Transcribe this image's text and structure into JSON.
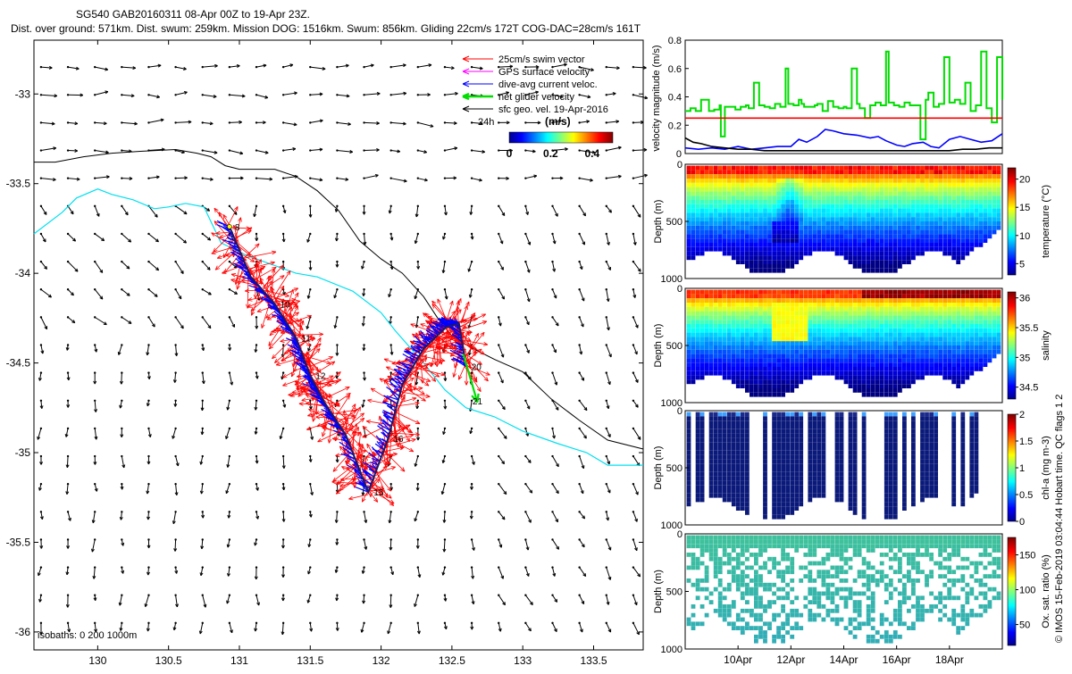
{
  "header": {
    "title": "SG540 GAB20160311 08-Apr 00Z to 19-Apr 23Z.",
    "subtitle": "Dist. over ground: 571km. Dist. swum: 259km. Mission DOG: 1516km. Swum: 856km. Gliding 22cm/s 172T COG-DAC=28cm/s 161T"
  },
  "footer": {
    "copyright": "© IMOS 15-Feb-2019 03:04:44 Hobart time. QC flags 1  2"
  },
  "colors": {
    "swim_vector": "#ff0000",
    "gps_surface": "#ff00ff",
    "dive_avg_current": "#0000ff",
    "net_velocity": "#00dd00",
    "geo_velocity": "#000000",
    "isobath_200": "#00e0f0",
    "isobath_1000": "#000000"
  },
  "chart_data": [
    {
      "type": "map",
      "name": "track-map",
      "xlim": [
        129.55,
        133.85
      ],
      "ylim": [
        -36.1,
        -32.7
      ],
      "xticks": [
        130,
        130.5,
        131,
        131.5,
        132,
        132.5,
        133,
        133.5
      ],
      "xtick_labels": [
        "130",
        "130.5",
        "131",
        "131.5",
        "132",
        "132.5",
        "133",
        "133.5"
      ],
      "yticks": [
        -33,
        -33.5,
        -34,
        -34.5,
        -35,
        -35.5,
        -36
      ],
      "ytick_labels": [
        "-33",
        "-33.5",
        "-34",
        "-34.5",
        "-35",
        "-35.5",
        "-36"
      ],
      "legend": {
        "placement": "top-right",
        "entries": [
          {
            "label": "25cm/s swim vector",
            "color": "#ff0000"
          },
          {
            "label": "GPS surface velocity",
            "color": "#ff00ff"
          },
          {
            "label": "dive-avg current veloc.",
            "color": "#0000ff"
          },
          {
            "label": "net glider velocity",
            "color": "#00dd00"
          },
          {
            "label": "sfc geo. vel. 19-Apr-2016",
            "color": "#000000"
          }
        ],
        "note": "24h"
      },
      "colorbar": {
        "label": "(m/s)",
        "ticks": [
          0,
          0.2,
          0.4
        ],
        "tick_labels": [
          "0",
          "0.2",
          "0.4"
        ],
        "range": [
          0,
          0.5
        ]
      },
      "isobaths_label": "isobaths: 0   200  1000m",
      "track": [
        {
          "lon": 130.93,
          "lat": -33.74,
          "day": "8"
        },
        {
          "lon": 131.08,
          "lat": -34.02
        },
        {
          "lon": 131.25,
          "lat": -34.17,
          "day": "10"
        },
        {
          "lon": 131.4,
          "lat": -34.36,
          "day": "11"
        },
        {
          "lon": 131.5,
          "lat": -34.57,
          "day": "12"
        },
        {
          "lon": 131.6,
          "lat": -34.72
        },
        {
          "lon": 131.75,
          "lat": -34.9
        },
        {
          "lon": 131.91,
          "lat": -35.22,
          "day": "15"
        },
        {
          "lon": 132.05,
          "lat": -34.92,
          "day": "16"
        },
        {
          "lon": 132.15,
          "lat": -34.62
        },
        {
          "lon": 132.3,
          "lat": -34.42
        },
        {
          "lon": 132.46,
          "lat": -34.3
        },
        {
          "lon": 132.55,
          "lat": -34.28
        },
        {
          "lon": 132.6,
          "lat": -34.52,
          "day": "20"
        }
      ],
      "extra_labels": [
        {
          "lon": 132.62,
          "lat": -34.71,
          "text": "21"
        }
      ],
      "net_velocity_arrow": {
        "from": [
          132.58,
          -34.45
        ],
        "to": [
          132.68,
          -34.72
        ]
      },
      "isobath_200": [
        [
          129.55,
          -33.78
        ],
        [
          129.75,
          -33.66
        ],
        [
          129.85,
          -33.58
        ],
        [
          130.0,
          -33.53
        ],
        [
          130.1,
          -33.56
        ],
        [
          130.25,
          -33.59
        ],
        [
          130.4,
          -33.64
        ],
        [
          130.5,
          -33.63
        ],
        [
          130.62,
          -33.61
        ],
        [
          130.75,
          -33.63
        ],
        [
          130.87,
          -33.83
        ],
        [
          131.05,
          -33.9
        ],
        [
          131.4,
          -34.0
        ],
        [
          131.55,
          -34.02
        ],
        [
          131.8,
          -34.1
        ],
        [
          132.0,
          -34.22
        ],
        [
          132.1,
          -34.32
        ],
        [
          132.3,
          -34.5
        ],
        [
          132.45,
          -34.65
        ],
        [
          132.6,
          -34.75
        ],
        [
          132.8,
          -34.8
        ],
        [
          133.0,
          -34.88
        ],
        [
          133.25,
          -34.95
        ],
        [
          133.45,
          -35.0
        ],
        [
          133.6,
          -35.07
        ],
        [
          133.85,
          -35.07
        ]
      ],
      "isobath_1000": [
        [
          129.55,
          -33.38
        ],
        [
          129.7,
          -33.38
        ],
        [
          129.9,
          -33.35
        ],
        [
          130.1,
          -33.33
        ],
        [
          130.3,
          -33.32
        ],
        [
          130.55,
          -33.31
        ],
        [
          130.7,
          -33.33
        ],
        [
          130.8,
          -33.35
        ],
        [
          130.9,
          -33.4
        ],
        [
          131.0,
          -33.42
        ],
        [
          131.25,
          -33.42
        ],
        [
          131.4,
          -33.46
        ],
        [
          131.55,
          -33.54
        ],
        [
          131.7,
          -33.65
        ],
        [
          131.85,
          -33.82
        ],
        [
          132.0,
          -33.92
        ],
        [
          132.15,
          -34.0
        ],
        [
          132.3,
          -34.13
        ],
        [
          132.4,
          -34.25
        ],
        [
          132.5,
          -34.35
        ],
        [
          132.65,
          -34.42
        ],
        [
          132.8,
          -34.48
        ],
        [
          133.0,
          -34.55
        ],
        [
          133.2,
          -34.7
        ],
        [
          133.4,
          -34.82
        ],
        [
          133.6,
          -34.93
        ],
        [
          133.85,
          -34.98
        ]
      ]
    },
    {
      "type": "line",
      "name": "velocity-magnitude",
      "ylabel": "velocity magnitude (m/s)",
      "ylim": [
        0,
        0.8
      ],
      "yticks": [
        0,
        0.2,
        0.4,
        0.6,
        0.8
      ],
      "ytick_labels": [
        "0",
        "0.2",
        "0.4",
        "0.6",
        "0.8"
      ],
      "xlim": [
        8,
        20
      ],
      "series": [
        {
          "color": "#00dd00",
          "x": [
            8.0,
            8.2,
            8.4,
            8.6,
            8.9,
            9.1,
            9.3,
            9.35,
            9.5,
            9.7,
            9.9,
            10.1,
            10.3,
            10.4,
            10.6,
            10.8,
            11.0,
            11.2,
            11.4,
            11.6,
            11.8,
            11.9,
            12.1,
            12.3,
            12.4,
            12.5,
            12.7,
            12.9,
            13.0,
            13.2,
            13.4,
            13.6,
            13.8,
            14.0,
            14.1,
            14.3,
            14.5,
            14.6,
            14.8,
            15.0,
            15.2,
            15.4,
            15.6,
            15.7,
            15.9,
            16.1,
            16.3,
            16.5,
            16.7,
            16.9,
            17.1,
            17.2,
            17.4,
            17.6,
            17.8,
            18.0,
            18.2,
            18.4,
            18.6,
            18.8,
            19.0,
            19.2,
            19.4,
            19.6,
            19.8,
            20.0
          ],
          "y": [
            0.3,
            0.32,
            0.3,
            0.38,
            0.3,
            0.31,
            0.34,
            0.12,
            0.33,
            0.33,
            0.31,
            0.33,
            0.34,
            0.32,
            0.5,
            0.34,
            0.33,
            0.32,
            0.35,
            0.33,
            0.6,
            0.35,
            0.34,
            0.38,
            0.35,
            0.33,
            0.33,
            0.34,
            0.35,
            0.3,
            0.37,
            0.33,
            0.32,
            0.33,
            0.32,
            0.6,
            0.35,
            0.32,
            0.25,
            0.34,
            0.36,
            0.34,
            0.72,
            0.36,
            0.34,
            0.33,
            0.36,
            0.34,
            0.34,
            0.1,
            0.38,
            0.43,
            0.33,
            0.35,
            0.68,
            0.36,
            0.38,
            0.35,
            0.5,
            0.3,
            0.34,
            0.72,
            0.32,
            0.22,
            0.68,
            0.38
          ]
        },
        {
          "color": "#0000ff",
          "x": [
            8.0,
            8.5,
            9.0,
            9.5,
            10.0,
            10.5,
            11.0,
            11.5,
            12.0,
            12.3,
            12.6,
            13.0,
            13.3,
            13.6,
            14.0,
            14.5,
            15.0,
            15.3,
            15.6,
            16.0,
            16.3,
            16.6,
            17.0,
            17.3,
            17.6,
            18.0,
            18.4,
            18.8,
            19.2,
            19.6,
            20.0
          ],
          "y": [
            0.04,
            0.03,
            0.04,
            0.03,
            0.05,
            0.03,
            0.04,
            0.05,
            0.05,
            0.1,
            0.08,
            0.12,
            0.17,
            0.16,
            0.14,
            0.13,
            0.11,
            0.12,
            0.09,
            0.06,
            0.05,
            0.07,
            0.08,
            0.05,
            0.04,
            0.1,
            0.12,
            0.1,
            0.08,
            0.09,
            0.14
          ]
        },
        {
          "color": "#000000",
          "x": [
            8.0,
            8.3,
            8.6,
            9.0,
            9.5,
            10.0,
            10.5,
            11.0,
            11.5,
            12.0,
            12.5,
            13.0,
            13.5,
            14.0,
            14.5,
            15.0,
            15.5,
            16.0,
            16.5,
            17.0,
            17.5,
            18.0,
            18.5,
            19.0,
            19.5,
            20.0
          ],
          "y": [
            0.11,
            0.08,
            0.07,
            0.05,
            0.04,
            0.03,
            0.03,
            0.02,
            0.02,
            0.02,
            0.02,
            0.02,
            0.02,
            0.02,
            0.02,
            0.02,
            0.02,
            0.02,
            0.02,
            0.02,
            0.02,
            0.02,
            0.03,
            0.03,
            0.04,
            0.04
          ]
        },
        {
          "color": "#ff0000",
          "x": [
            8.0,
            20.0
          ],
          "y": [
            0.25,
            0.25
          ]
        }
      ]
    },
    {
      "type": "heatmap",
      "name": "temperature",
      "ylabel": "Depth (m)",
      "colorbar_label": "temperature (°C)",
      "colorbar_ticks": [
        5,
        10,
        15,
        20
      ],
      "colorbar_range": [
        3,
        22
      ],
      "ylim": [
        1000,
        0
      ],
      "yticks": [
        0,
        500,
        1000
      ],
      "ytick_labels": [
        "0",
        "500",
        "1000"
      ]
    },
    {
      "type": "heatmap",
      "name": "salinity",
      "ylabel": "Depth (m)",
      "colorbar_label": "salinity",
      "colorbar_ticks": [
        34.5,
        35,
        35.5,
        36
      ],
      "colorbar_tick_labels": [
        "34.5",
        "35",
        "35.5",
        "36"
      ],
      "colorbar_range": [
        34.3,
        36.1
      ],
      "ylim": [
        1000,
        0
      ],
      "yticks": [
        0,
        500,
        1000
      ],
      "ytick_labels": [
        "0",
        "500",
        "1000"
      ]
    },
    {
      "type": "heatmap",
      "name": "chlorophyll",
      "ylabel": "Depth (m)",
      "colorbar_label": "chl-a (mg m-3)",
      "colorbar_ticks": [
        0,
        0.5,
        1,
        1.5,
        2
      ],
      "colorbar_tick_labels": [
        "0",
        "0.5",
        "1",
        "1.5",
        "2"
      ],
      "colorbar_range": [
        0,
        2
      ],
      "ylim": [
        1000,
        0
      ],
      "yticks": [
        0,
        500,
        1000
      ],
      "ytick_labels": [
        "0",
        "500",
        "1000"
      ]
    },
    {
      "type": "heatmap",
      "name": "oxygen",
      "ylabel": "Depth (m)",
      "colorbar_label": "Ox. sat. ratio (%)",
      "colorbar_ticks": [
        50,
        100,
        150
      ],
      "colorbar_tick_labels": [
        "50",
        "100",
        "150"
      ],
      "colorbar_range": [
        20,
        175
      ],
      "ylim": [
        1000,
        0
      ],
      "yticks": [
        0,
        500,
        1000
      ],
      "ytick_labels": [
        "0",
        "500",
        "1000"
      ],
      "xticks": [
        10,
        12,
        14,
        16,
        18
      ],
      "xtick_labels": [
        "10Apr",
        "12Apr",
        "14Apr",
        "16Apr",
        "18Apr"
      ]
    }
  ]
}
